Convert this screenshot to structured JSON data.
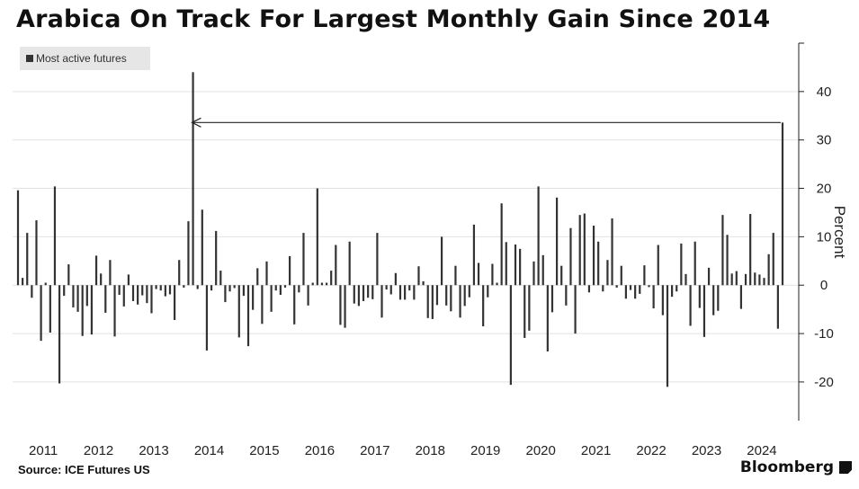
{
  "header": {
    "title": "Arabica On Track For Largest Monthly Gain Since 2014"
  },
  "footer": {
    "source": "Source: ICE Futures US",
    "brand": "Bloomberg",
    "brand_icon": "bloomberg-terminal-icon"
  },
  "colors": {
    "bar": "#333333",
    "grid": "#e2e2e2",
    "axis": "#222222",
    "legend_bg": "#e6e6e6"
  },
  "chart_data": {
    "type": "bar",
    "title": "Arabica On Track For Largest Monthly Gain Since 2014",
    "xlabel": "",
    "ylabel": "Percent",
    "ylim": [
      -28,
      50
    ],
    "y_ticks": [
      -20,
      -10,
      0,
      10,
      20,
      30,
      40
    ],
    "y_axis_side": "right",
    "grid": true,
    "legend": {
      "position": "top-left",
      "entries": [
        "Most active futures"
      ]
    },
    "x_ticks": [
      "2011",
      "2012",
      "2013",
      "2014",
      "2015",
      "2016",
      "2017",
      "2018",
      "2019",
      "2020",
      "2021",
      "2022",
      "2023",
      "2024"
    ],
    "start": "2011-01",
    "series": [
      {
        "name": "Most active futures",
        "values": [
          19.6,
          1.5,
          10.8,
          -2.6,
          13.4,
          -11.5,
          0.5,
          -9.8,
          20.4,
          -20.3,
          -2.2,
          4.3,
          -4.6,
          -5.5,
          -10.5,
          -4.3,
          -10.2,
          6.1,
          2.4,
          -5.7,
          5.2,
          -10.6,
          -2.0,
          -4.4,
          2.2,
          -3.3,
          -4.0,
          -2.1,
          -3.7,
          -5.8,
          -0.8,
          -1.1,
          -2.3,
          -1.9,
          -7.2,
          5.2,
          -0.5,
          13.2,
          44.0,
          -0.8,
          15.6,
          -13.5,
          -1.1,
          11.2,
          3.0,
          -3.5,
          -1.3,
          -0.6,
          -10.8,
          -2.2,
          -12.6,
          -5.1,
          3.5,
          -8.0,
          4.9,
          -5.5,
          -1.1,
          -2.0,
          -0.5,
          6.0,
          -8.1,
          -1.5,
          10.8,
          -4.2,
          0.5,
          20.0,
          0.5,
          0.5,
          3.0,
          8.3,
          -8.2,
          -8.8,
          9.0,
          -3.8,
          -4.3,
          -3.3,
          -2.6,
          -2.9,
          10.8,
          -6.7,
          -0.9,
          -1.9,
          2.5,
          -3.0,
          -3.0,
          -1.1,
          -3.0,
          3.9,
          0.8,
          -6.8,
          -7.0,
          -4.1,
          10.0,
          -4.2,
          -5.4,
          4.0,
          -6.7,
          -4.3,
          -2.5,
          12.5,
          4.6,
          -8.5,
          -2.5,
          4.4,
          0.5,
          16.9,
          8.9,
          -20.6,
          8.4,
          7.5,
          -10.9,
          -9.4,
          4.9,
          20.4,
          6.2,
          -13.7,
          -5.6,
          18.1,
          4.0,
          -4.2,
          11.8,
          -10.0,
          14.5,
          14.8,
          -1.5,
          12.3,
          9.0,
          -1.3,
          5.2,
          13.8,
          -0.5,
          4.0,
          -2.8,
          -1.0,
          -2.8,
          -1.8,
          4.1,
          -0.4,
          -4.8,
          8.3,
          -6.2,
          -21.0,
          -2.4,
          -1.3,
          8.6,
          2.3,
          -8.4,
          9.0,
          -4.7,
          -10.7,
          3.6,
          -6.2,
          -5.3,
          14.5,
          10.4,
          2.4,
          2.9,
          -4.9,
          2.3,
          14.7,
          2.6,
          2.2,
          1.5,
          6.4,
          10.8,
          -9.0,
          33.6
        ]
      }
    ],
    "annotations": [
      {
        "type": "arrow",
        "from_month": "2024-11",
        "to_month": "2014-02",
        "y": 33.6
      }
    ]
  }
}
